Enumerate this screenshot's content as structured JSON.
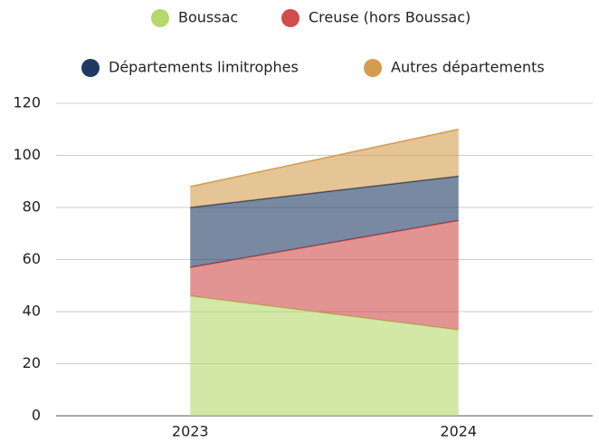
{
  "chart_data": {
    "type": "area",
    "stacked": true,
    "categories": [
      "2023",
      "2024"
    ],
    "series": [
      {
        "name": "Boussac",
        "color": "#b5d86a",
        "values": [
          46,
          33
        ]
      },
      {
        "name": "Creuse (hors Boussac)",
        "color": "#cf4d4b",
        "values": [
          11,
          42
        ]
      },
      {
        "name": "Départements limitrophes",
        "color": "#1e3a63",
        "values": [
          23,
          17
        ]
      },
      {
        "name": "Autres départements",
        "color": "#d39c4e",
        "values": [
          8,
          18
        ]
      }
    ],
    "ylim": [
      0,
      120
    ],
    "yticks": [
      0,
      20,
      40,
      60,
      80,
      100,
      120
    ],
    "grid": true,
    "legend": "top"
  }
}
